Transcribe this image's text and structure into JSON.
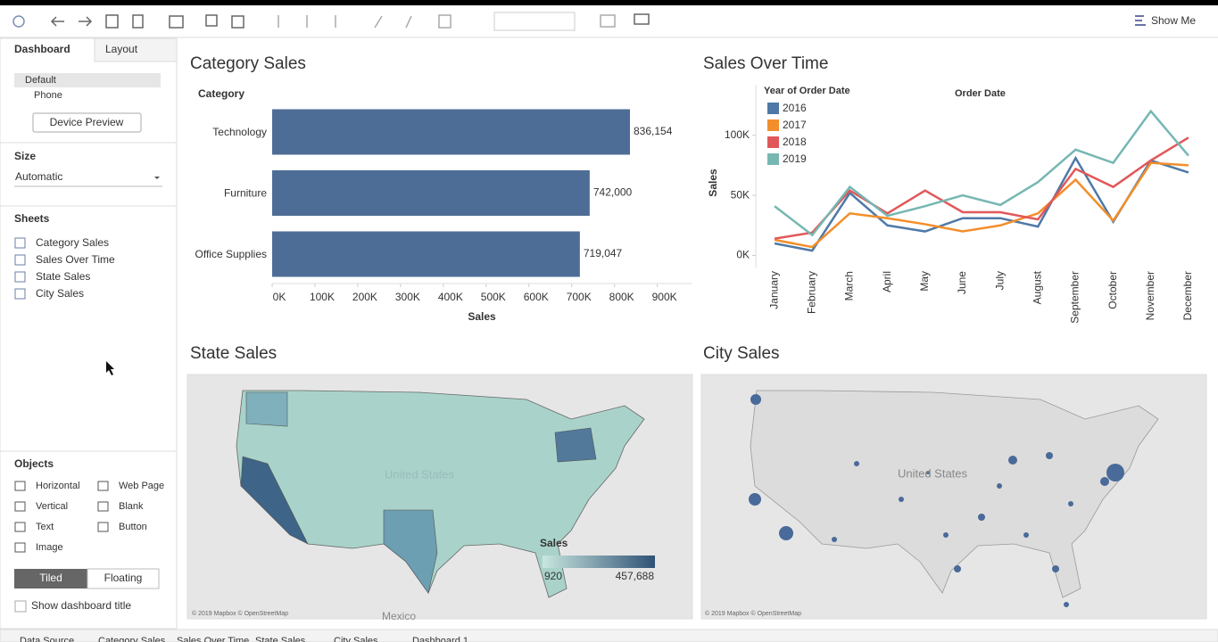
{
  "toolbar": {
    "show_me": "Show Me"
  },
  "sidebar": {
    "tabs": [
      "Dashboard",
      "Layout"
    ],
    "devices": [
      "Default",
      "Phone"
    ],
    "device_preview": "Device Preview",
    "size_heading": "Size",
    "size_value": "Automatic",
    "sheets_heading": "Sheets",
    "sheets": [
      "Category Sales",
      "Sales Over Time",
      "State Sales",
      "City Sales"
    ],
    "objects_heading": "Objects",
    "objects": [
      "Horizontal",
      "Web Page",
      "Vertical",
      "Blank",
      "Text",
      "Button",
      "Image"
    ],
    "layout_modes": [
      "Tiled",
      "Floating"
    ],
    "show_title": "Show dashboard title"
  },
  "bottom_tabs": [
    "Data Source",
    "Category Sales",
    "Sales Over Time",
    "State Sales",
    "City Sales",
    "Dashboard 1"
  ],
  "chart_data": [
    {
      "type": "bar",
      "title": "Category Sales",
      "category_header": "Category",
      "x_label": "Sales",
      "categories": [
        "Technology",
        "Furniture",
        "Office Supplies"
      ],
      "values": [
        836154,
        742000,
        719047
      ],
      "value_labels": [
        "836,154",
        "742,000",
        "719,047"
      ],
      "color": "#4e6d96",
      "xlim": [
        0,
        980000
      ],
      "xticks": [
        {
          "value": 0,
          "label": "0K"
        },
        {
          "value": 100000,
          "label": "100K"
        },
        {
          "value": 200000,
          "label": "200K"
        },
        {
          "value": 300000,
          "label": "300K"
        },
        {
          "value": 400000,
          "label": "400K"
        },
        {
          "value": 500000,
          "label": "500K"
        },
        {
          "value": 600000,
          "label": "600K"
        },
        {
          "value": 700000,
          "label": "700K"
        },
        {
          "value": 800000,
          "label": "800K"
        },
        {
          "value": 900000,
          "label": "900K"
        }
      ],
      "grid": false
    },
    {
      "type": "line",
      "title": "Sales Over Time",
      "legend_title": "Year of Order Date",
      "x_header": "Order Date",
      "y_label": "Sales",
      "categories": [
        "January",
        "February",
        "March",
        "April",
        "May",
        "June",
        "July",
        "August",
        "September",
        "October",
        "November",
        "December"
      ],
      "series": [
        {
          "name": "2016",
          "color": "#4e79a7",
          "values": [
            10000,
            4000,
            52000,
            25000,
            20000,
            31000,
            31000,
            24000,
            81000,
            28000,
            79000,
            69000
          ]
        },
        {
          "name": "2017",
          "color": "#f28e2b",
          "values": [
            13000,
            7000,
            35000,
            31000,
            26000,
            20000,
            25000,
            35000,
            63000,
            29000,
            77000,
            75000
          ]
        },
        {
          "name": "2018",
          "color": "#e15759",
          "values": [
            14000,
            19000,
            54000,
            35000,
            54000,
            36000,
            36000,
            30000,
            72000,
            57000,
            79000,
            98000
          ]
        },
        {
          "name": "2019",
          "color": "#76b7b2",
          "values": [
            41000,
            17000,
            57000,
            33000,
            41000,
            50000,
            42000,
            61000,
            88000,
            77000,
            120000,
            83000
          ]
        }
      ],
      "ylim": [
        -10000,
        142000
      ],
      "yticks": [
        {
          "value": 0,
          "label": "0K"
        },
        {
          "value": 50000,
          "label": "50K"
        },
        {
          "value": 100000,
          "label": "100K"
        }
      ],
      "grid": false,
      "legend": "top-left"
    }
  ],
  "maps": [
    {
      "title": "State Sales",
      "labels": [
        "United States",
        "Mexico"
      ],
      "legend_title": "Sales",
      "legend_min": "920",
      "legend_max": "457,688",
      "credit": "© 2019 Mapbox © OpenStreetMap"
    },
    {
      "title": "City Sales",
      "labels": [
        "United States"
      ],
      "credit": "© 2019 Mapbox © OpenStreetMap"
    }
  ]
}
